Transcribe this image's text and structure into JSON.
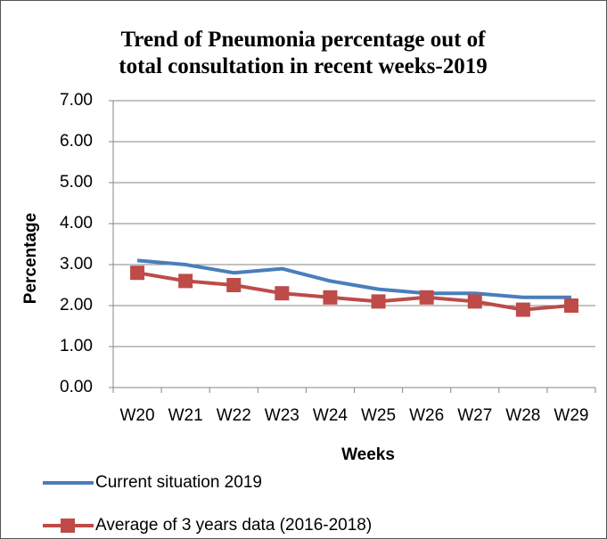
{
  "chart_data": {
    "type": "line",
    "title": "Trend of Pneumonia percentage out of total consultation in recent weeks-2019",
    "x_label": "Weeks",
    "y_label": "Percentage",
    "categories": [
      "W20",
      "W21",
      "W22",
      "W23",
      "W24",
      "W25",
      "W26",
      "W27",
      "W28",
      "W29"
    ],
    "series": [
      {
        "name": "Current situation 2019",
        "color": "#4a7ebb",
        "marker": false,
        "values": [
          3.1,
          3.0,
          2.8,
          2.9,
          2.6,
          2.4,
          2.3,
          2.3,
          2.2,
          2.2
        ]
      },
      {
        "name": "Average of 3 years data (2016-2018)",
        "color": "#be4b48",
        "marker": true,
        "values": [
          2.8,
          2.6,
          2.5,
          2.3,
          2.2,
          2.1,
          2.2,
          2.1,
          1.9,
          2.0
        ]
      }
    ],
    "ylim": [
      0,
      7
    ],
    "yticks": [
      {
        "value": 0,
        "label": "0.00"
      },
      {
        "value": 1,
        "label": "1.00"
      },
      {
        "value": 2,
        "label": "2.00"
      },
      {
        "value": 3,
        "label": "3.00"
      },
      {
        "value": 4,
        "label": "4.00"
      },
      {
        "value": 5,
        "label": "5.00"
      },
      {
        "value": 6,
        "label": "6.00"
      },
      {
        "value": 7,
        "label": "7.00"
      }
    ],
    "grid": true,
    "legend": "bottom"
  }
}
